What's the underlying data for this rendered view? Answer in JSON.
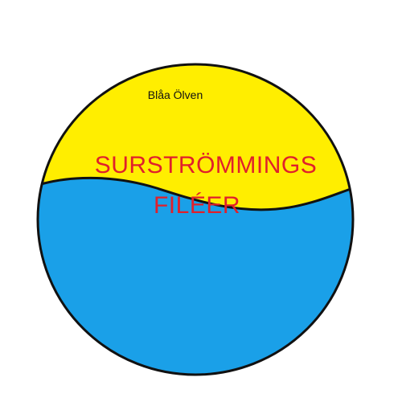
{
  "logo": {
    "brand": "Blåa Ölven",
    "title_line_1": "SURSTRÖMMINGS",
    "title_line_2": "FILÉER"
  },
  "colors": {
    "background": "#ffffff",
    "top_half": "#ffee00",
    "bottom_half": "#1aa0e8",
    "outline": "#111111",
    "title_text": "#e0202b",
    "brand_text": "#111111"
  }
}
